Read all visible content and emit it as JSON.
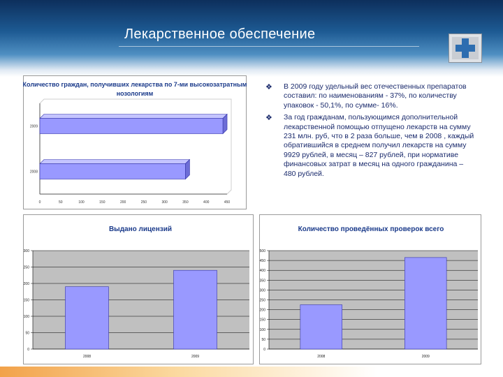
{
  "slide_title": "Лекарственное обеспечение",
  "bullet_icon": "diamond-bullet-icon",
  "bullets": [
    "В 2009 году удельный вес отечественных препаратов составил: по наименованиям - 37%, по количеству упаковок - 50,1%, по сумме- 16%.",
    "За год гражданам, пользующимся дополнительной лекарственной помощью отпущено лекарств на сумму 231 млн. руб, что в 2 раза больше, чем в 2008 , каждый обратившийся в среднем получил лекарств на сумму 9929 рублей, в месяц – 827 рублей, при нормативе финансовых затрат в месяц на одного гражданина – 480 рублей."
  ],
  "colors": {
    "bar_fill": "#9999ff",
    "bar_edge": "#3333aa",
    "plot_bg": "#c0c0c0",
    "title": "#1a3a8a"
  },
  "chart_data": [
    {
      "type": "bar",
      "orientation": "horizontal",
      "title": "Количество граждан, получивших лекарства по 7-ми высокозатратным нозологиям",
      "categories": [
        "2009",
        "2008"
      ],
      "values": [
        440,
        350
      ],
      "xlim": [
        0,
        450
      ],
      "xticks": [
        0,
        50,
        100,
        150,
        200,
        250,
        300,
        350,
        400,
        450
      ],
      "grid": false
    },
    {
      "type": "bar",
      "title": "Выдано лицензий",
      "categories": [
        "2008",
        "2009"
      ],
      "values": [
        190,
        240
      ],
      "ylim": [
        0,
        300
      ],
      "yticks": [
        0,
        50,
        100,
        150,
        200,
        250,
        300
      ],
      "grid": true
    },
    {
      "type": "bar",
      "title": "Количество проведённых проверок всего",
      "categories": [
        "2008",
        "2009"
      ],
      "values": [
        225,
        465
      ],
      "ylim": [
        0,
        500
      ],
      "yticks": [
        0,
        50,
        100,
        150,
        200,
        250,
        300,
        350,
        400,
        450,
        500
      ],
      "grid": true
    }
  ]
}
